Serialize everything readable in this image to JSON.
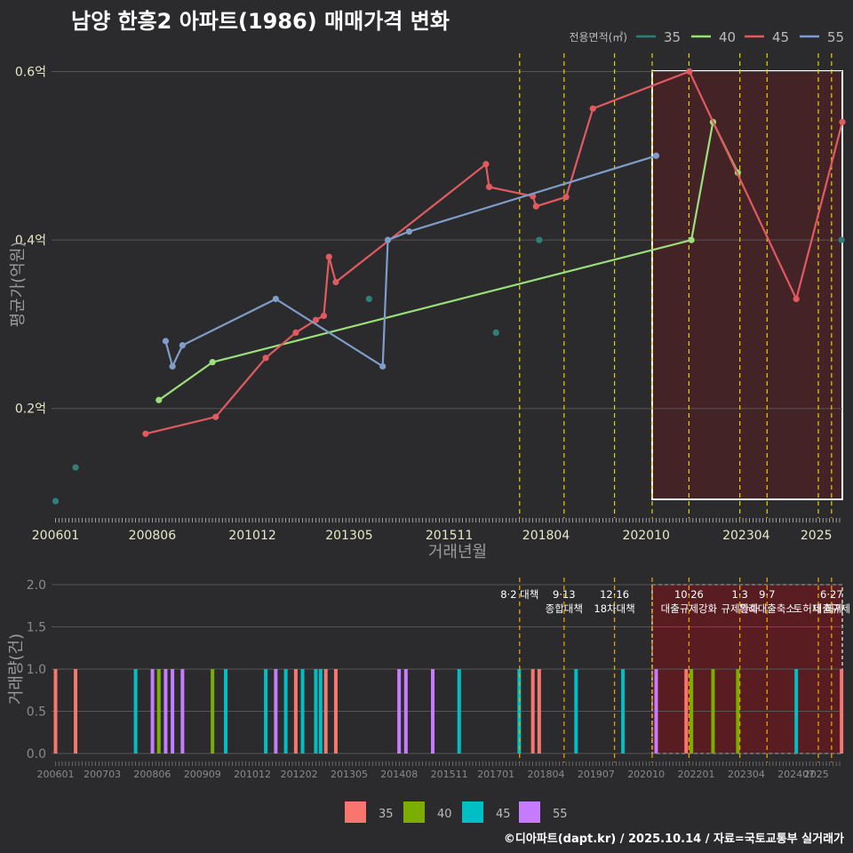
{
  "title": "남양 한흥2 아파트(1986) 매매가격 변화",
  "credit": "©디아파트(dapt.kr) / 2025.10.14 / 자료=국토교통부 실거래가",
  "colors": {
    "background": "#2b2b2d",
    "grid": "#555555",
    "policy_line": "#e6d200",
    "policy_line_bottom": "#e6a100",
    "highlight_fill": "#5a1e22",
    "s35": "#2f7f7a",
    "s40": "#9adf7a",
    "s45": "#e05a5f",
    "s55": "#7f9dc9",
    "b35": "#f8766d",
    "b40": "#7cae00",
    "b45": "#00bfc4",
    "b55": "#c77cff"
  },
  "policy_dates": [
    2017.59,
    2018.7,
    2019.96,
    2020.9,
    2021.82,
    2023.09,
    2023.77,
    2025.05,
    2025.38
  ],
  "policy_labels": [
    {
      "date": 2017.59,
      "lines": [
        "8·2 대책"
      ]
    },
    {
      "date": 2018.7,
      "lines": [
        "9·13",
        "종합대책"
      ]
    },
    {
      "date": 2019.96,
      "lines": [
        "12·16",
        "18차대책"
      ]
    },
    {
      "date": 2021.82,
      "lines": [
        "10·26",
        "대출규제강화"
      ]
    },
    {
      "date": 2023.09,
      "lines": [
        "1·3",
        "규제완화"
      ]
    },
    {
      "date": 2023.77,
      "lines": [
        "9·7",
        "특례대출축소"
      ]
    },
    {
      "date": 2025.05,
      "lines": [
        "",
        "토허제 해제"
      ]
    },
    {
      "date": 2025.38,
      "lines": [
        "6·27",
        "대출규제"
      ]
    }
  ],
  "chart_data": [
    {
      "type": "line",
      "title": "남양 한흥2 아파트(1986) 매매가격 변화",
      "xlabel": "거래년월",
      "ylabel": "평균가(억원)",
      "xlim": [
        2005.9,
        2025.65
      ],
      "ylim": [
        0.07,
        0.63
      ],
      "x_ticks": [
        "200601",
        "200806",
        "201012",
        "201305",
        "201511",
        "201804",
        "202010",
        "202304",
        "2025"
      ],
      "y_ticks": [
        "0.2억",
        "0.4억",
        "0.6억"
      ],
      "y_tick_values": [
        0.2,
        0.4,
        0.6
      ],
      "highlight_range": [
        2020.9,
        2025.65
      ],
      "legend_title": "전용면적(㎡)",
      "series": [
        {
          "name": "35",
          "x": [
            2006.0,
            2006.5,
            2013.83,
            2017.0,
            2018.08,
            2025.63
          ],
          "y": [
            0.09,
            0.13,
            0.33,
            0.29,
            0.4,
            0.4
          ],
          "points_only": true
        },
        {
          "name": "40",
          "x": [
            2008.58,
            2009.92,
            2021.88,
            2022.42,
            2023.04
          ],
          "y": [
            0.21,
            0.255,
            0.4,
            0.54,
            0.48
          ]
        },
        {
          "name": "45",
          "x": [
            2008.25,
            2010.0,
            2011.25,
            2012.0,
            2012.5,
            2012.7,
            2012.83,
            2013.0,
            2016.75,
            2016.83,
            2017.92,
            2018.0,
            2018.75,
            2019.42,
            2021.83,
            2024.5,
            2025.65
          ],
          "y": [
            0.17,
            0.19,
            0.26,
            0.29,
            0.305,
            0.31,
            0.38,
            0.35,
            0.49,
            0.463,
            0.452,
            0.44,
            0.451,
            0.556,
            0.6,
            0.33,
            0.54
          ]
        },
        {
          "name": "55",
          "x": [
            2008.75,
            2008.92,
            2009.17,
            2011.5,
            2014.17,
            2014.3,
            2014.83,
            2021.0
          ],
          "y": [
            0.28,
            0.25,
            0.275,
            0.33,
            0.25,
            0.4,
            0.41,
            0.5
          ]
        }
      ]
    },
    {
      "type": "bar",
      "title": "",
      "xlabel": "",
      "ylabel": "거래량(건)",
      "xlim": [
        2005.9,
        2025.65
      ],
      "ylim": [
        0,
        2.1
      ],
      "x_ticks": [
        "200601",
        "200703",
        "200806",
        "200909",
        "201012",
        "201202",
        "201305",
        "201408",
        "201511",
        "201701",
        "201804",
        "201907",
        "202010",
        "202201",
        "202304",
        "202407",
        "2025"
      ],
      "y_ticks": [
        "0.0",
        "0.5",
        "1.0",
        "1.5",
        "2.0"
      ],
      "y_tick_values": [
        0,
        0.5,
        1.0,
        1.5,
        2.0
      ],
      "highlight_range": [
        2020.9,
        2025.65
      ],
      "legend": [
        "35",
        "40",
        "45",
        "55"
      ],
      "series": [
        {
          "name": "35",
          "x": [
            2006.0,
            2006.5,
            2012.0,
            2012.75,
            2013.0,
            2017.92,
            2018.08,
            2021.75,
            2025.63
          ],
          "y": [
            1,
            1,
            1,
            1,
            1,
            1,
            1,
            1,
            1
          ]
        },
        {
          "name": "40",
          "x": [
            2008.58,
            2009.92,
            2021.88,
            2022.42,
            2023.04
          ],
          "y": [
            1,
            1,
            1,
            1,
            1
          ]
        },
        {
          "name": "45",
          "x": [
            2008.0,
            2010.25,
            2011.25,
            2011.75,
            2012.17,
            2012.5,
            2012.62,
            2016.08,
            2017.58,
            2019.0,
            2020.17,
            2024.5
          ],
          "y": [
            1,
            1,
            1,
            1,
            1,
            1,
            1,
            1,
            1,
            1,
            1,
            1
          ]
        },
        {
          "name": "55",
          "x": [
            2008.42,
            2008.75,
            2008.92,
            2009.17,
            2011.5,
            2014.58,
            2014.75,
            2015.42,
            2021.0
          ],
          "y": [
            1,
            1,
            1,
            1,
            1,
            1,
            1,
            1,
            1
          ]
        }
      ]
    }
  ]
}
